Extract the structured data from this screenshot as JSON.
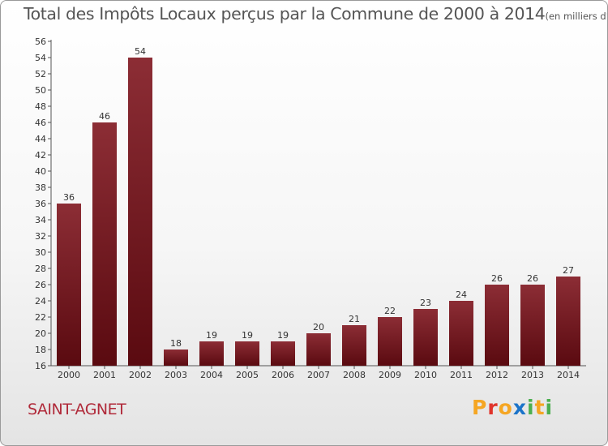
{
  "header": {
    "title": "Total des Impôts Locaux perçus par la Commune de 2000 à 2014",
    "unit": "(en milliers d'€)"
  },
  "commune": "SAINT-AGNET",
  "logo": {
    "text": "Proxiti",
    "letters": [
      "P",
      "r",
      "o",
      "x",
      "i",
      "t",
      "i"
    ],
    "colors": [
      "#f5a623",
      "#e0352c",
      "#f5a623",
      "#1a73c9",
      "#4caf50",
      "#f5a623",
      "#4caf50"
    ]
  },
  "colors": {
    "bar_top": "#8c2d35",
    "bar_bottom": "#5a0a10",
    "axis": "#555555",
    "grid": "#cccccc"
  },
  "chart_data": {
    "type": "bar",
    "title": "Total des Impôts Locaux perçus par la Commune de 2000 à 2014",
    "subtitle": "(en milliers d'€)",
    "xlabel": "",
    "ylabel": "",
    "categories": [
      "2000",
      "2001",
      "2002",
      "2003",
      "2004",
      "2005",
      "2006",
      "2007",
      "2008",
      "2009",
      "2010",
      "2011",
      "2012",
      "2013",
      "2014"
    ],
    "values": [
      36,
      46,
      54,
      18,
      19,
      19,
      19,
      20,
      21,
      22,
      23,
      24,
      26,
      26,
      27
    ],
    "ylim": [
      16,
      56
    ],
    "yticks": [
      16,
      18,
      20,
      22,
      24,
      26,
      28,
      30,
      32,
      34,
      36,
      38,
      40,
      42,
      44,
      46,
      48,
      50,
      52,
      54,
      56
    ],
    "grid": false
  }
}
